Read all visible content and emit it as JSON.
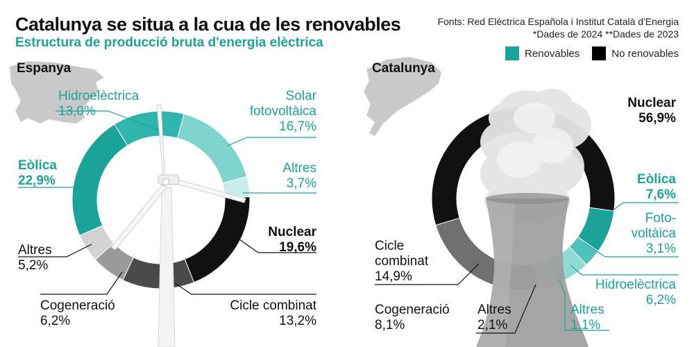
{
  "header": {
    "title": "Catalunya se situa a la cua de les renovables",
    "subtitle": "Estructura de producció bruta d'energia elèctrica",
    "source_line1": "Fonts: Red Eléctrica Española i Institut Català d'Energia",
    "source_line2": "*Dades de 2024 **Dades de 2023"
  },
  "legend": {
    "renewable": "Renovables",
    "non_renewable": "No renovables",
    "renewable_color": "#1ba39a",
    "non_renewable_color": "#000000"
  },
  "chart_data": [
    {
      "type": "pie",
      "title": "Espanya",
      "slices": [
        {
          "label": "Nuclear",
          "value": 19.6,
          "display": "19,6%",
          "color": "#111111",
          "group": "No renovables"
        },
        {
          "label": "Cicle combinat",
          "value": 13.2,
          "display": "13,2%",
          "color": "#4a4a4a",
          "group": "No renovables"
        },
        {
          "label": "Cogeneració",
          "value": 6.2,
          "display": "6,2%",
          "color": "#9a9a9a",
          "group": "No renovables"
        },
        {
          "label": "Altres",
          "value": 5.2,
          "display": "5,2%",
          "color": "#d2d2d2",
          "group": "No renovables"
        },
        {
          "label": "Eòlica",
          "value": 22.9,
          "display": "22,9%",
          "color": "#1ba39a",
          "group": "Renovables"
        },
        {
          "label": "Hidroelèctrica",
          "value": 13.0,
          "display": "13,0%",
          "color": "#2fb5ad",
          "group": "Renovables"
        },
        {
          "label": "Solar fotovoltàica",
          "value": 16.7,
          "display": "16,7%",
          "color": "#7fd3cd",
          "group": "Renovables"
        },
        {
          "label": "Altres",
          "value": 3.7,
          "display": "3,7%",
          "color": "#c8ede9",
          "group": "Renovables"
        }
      ]
    },
    {
      "type": "pie",
      "title": "Catalunya",
      "slices": [
        {
          "label": "Nuclear",
          "value": 56.9,
          "display": "56,9%",
          "color": "#111111",
          "group": "No renovables"
        },
        {
          "label": "Eòlica",
          "value": 7.6,
          "display": "7,6%",
          "color": "#1ba39a",
          "group": "Renovables"
        },
        {
          "label": "Fotovoltàica",
          "value": 3.1,
          "display": "3,1%",
          "color": "#4fc2ba",
          "group": "Renovables"
        },
        {
          "label": "Hidroelèctrica",
          "value": 6.2,
          "display": "6,2%",
          "color": "#8fdad4",
          "group": "Renovables"
        },
        {
          "label": "Altres",
          "value": 1.1,
          "display": "1,1%",
          "color": "#c8ede9",
          "group": "Renovables"
        },
        {
          "label": "Altres",
          "value": 2.1,
          "display": "2,1%",
          "color": "#d2d2d2",
          "group": "No renovables"
        },
        {
          "label": "Cogeneració",
          "value": 8.1,
          "display": "8,1%",
          "color": "#9a9a9a",
          "group": "No renovables"
        },
        {
          "label": "Cicle combinat",
          "value": 14.9,
          "display": "14,9%",
          "color": "#707070",
          "group": "No renovables"
        }
      ]
    }
  ],
  "labels": {
    "es_hidro_name": "Hidroelèctrica",
    "es_hidro_val": "13,0%",
    "es_solar_name1": "Solar",
    "es_solar_name2": "fotovoltàica",
    "es_solar_val": "16,7%",
    "es_eolica_name": "Eòlica",
    "es_eolica_val": "22,9%",
    "es_altres_ren_name": "Altres",
    "es_altres_ren_val": "3,7%",
    "es_nuclear_name": "Nuclear",
    "es_nuclear_val": "19,6%",
    "es_altres_nr_name": "Altres",
    "es_altres_nr_val": "5,2%",
    "es_cogen_name": "Cogeneració",
    "es_cogen_val": "6,2%",
    "es_cicle_name": "Cicle combinat",
    "es_cicle_val": "13,2%",
    "ca_nuclear_name": "Nuclear",
    "ca_nuclear_val": "56,9%",
    "ca_eolica_name": "Eòlica",
    "ca_eolica_val": "7,6%",
    "ca_foto_name1": "Foto-",
    "ca_foto_name2": "voltàica",
    "ca_foto_val": "3,1%",
    "ca_hidro_name": "Hidroelèctrica",
    "ca_hidro_val": "6,2%",
    "ca_altres_ren_name": "Altres",
    "ca_altres_ren_val": "1,1%",
    "ca_altres_nr_name": "Altres",
    "ca_altres_nr_val": "2,1%",
    "ca_cogen_name": "Cogeneració",
    "ca_cogen_val": "8,1%",
    "ca_cicle_name1": "Cicle",
    "ca_cicle_name2": "combinat",
    "ca_cicle_val": "14,9%"
  }
}
